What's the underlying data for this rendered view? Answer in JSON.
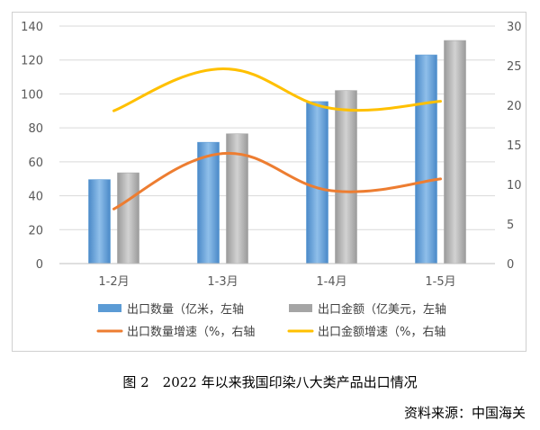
{
  "chart_data": {
    "type": "bar",
    "categories": [
      "1-2月",
      "1-3月",
      "1-4月",
      "1-5月"
    ],
    "series": [
      {
        "name": "出口数量（亿米，左轴",
        "kind": "bar",
        "axis": "left",
        "color": "#5b9bd5",
        "values": [
          49.5,
          71.5,
          95.5,
          123
        ]
      },
      {
        "name": "出口金额（亿美元，左轴",
        "kind": "bar",
        "axis": "left",
        "color": "#a5a5a5",
        "values": [
          53.5,
          76.5,
          102,
          131.5
        ]
      },
      {
        "name": "出口数量增速（%，右轴",
        "kind": "line",
        "axis": "right",
        "color": "#ed7d31",
        "values": [
          6.9,
          13.9,
          9.2,
          10.7
        ]
      },
      {
        "name": "出口金额增速（%，右轴",
        "kind": "line",
        "axis": "right",
        "color": "#ffc000",
        "values": [
          19.3,
          24.6,
          19.6,
          20.5
        ]
      }
    ],
    "y_left": {
      "min": 0,
      "max": 140,
      "ticks": [
        "0",
        "20",
        "40",
        "60",
        "80",
        "100",
        "120",
        "140"
      ]
    },
    "y_right": {
      "min": 0,
      "max": 30,
      "ticks": [
        "0",
        "5",
        "10",
        "15",
        "20",
        "25",
        "30"
      ]
    },
    "grid": true,
    "legend_position": "bottom"
  },
  "caption": "图 2　2022 年以来我国印染八大类产品出口情况",
  "source": "资料来源：中国海关"
}
